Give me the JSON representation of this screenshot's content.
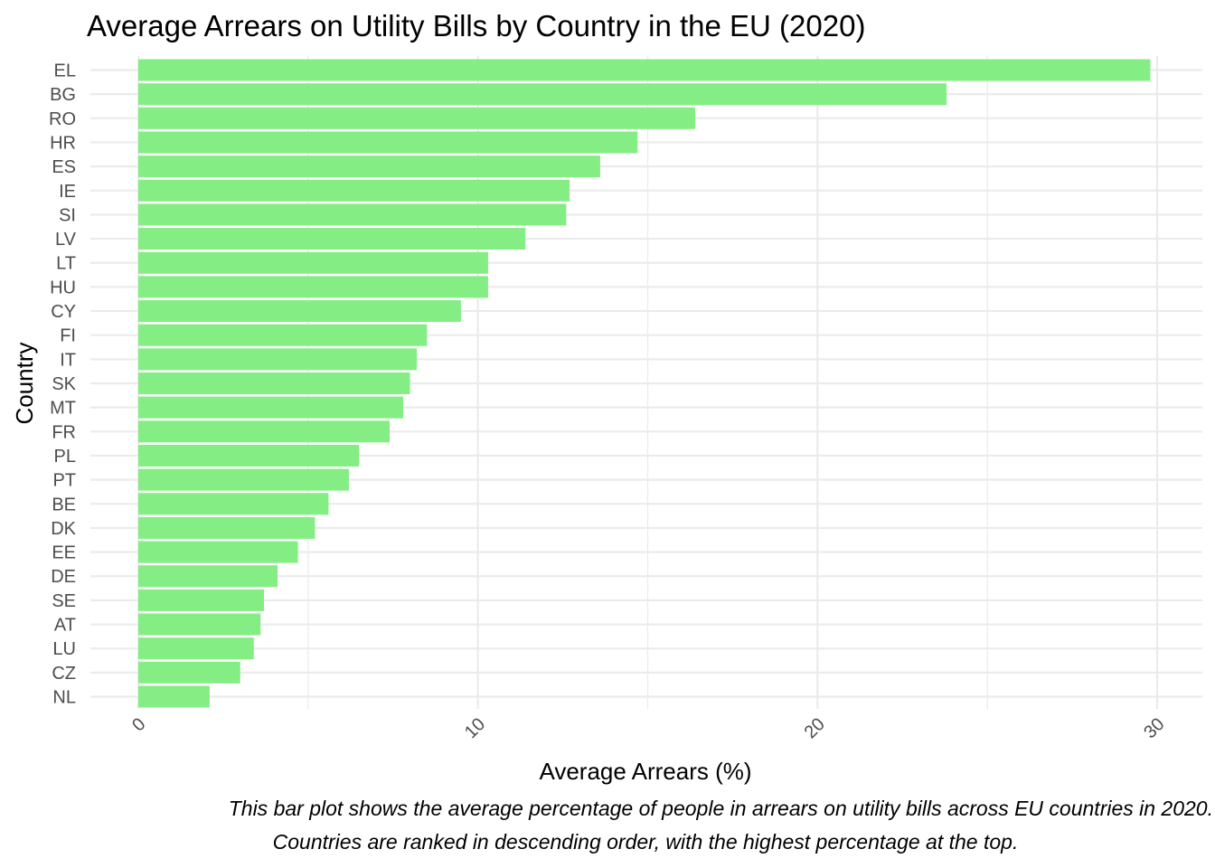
{
  "chart_data": {
    "type": "bar",
    "orientation": "horizontal",
    "title": "Average Arrears on Utility Bills by Country in the EU (2020)",
    "xlabel": "Average Arrears (%)",
    "ylabel": "Country",
    "caption": [
      "This bar plot shows the average percentage of people in arrears on utility bills across EU countries in 2020.",
      "Countries are ranked in descending order, with the highest percentage at the top."
    ],
    "categories": [
      "EL",
      "BG",
      "RO",
      "HR",
      "ES",
      "IE",
      "SI",
      "LV",
      "LT",
      "HU",
      "CY",
      "FI",
      "IT",
      "SK",
      "MT",
      "FR",
      "PL",
      "PT",
      "BE",
      "DK",
      "EE",
      "DE",
      "SE",
      "AT",
      "LU",
      "CZ",
      "NL"
    ],
    "values": [
      29.8,
      23.8,
      16.4,
      14.7,
      13.6,
      12.7,
      12.6,
      11.4,
      10.3,
      10.3,
      9.5,
      8.5,
      8.2,
      8.0,
      7.8,
      7.4,
      6.5,
      6.2,
      5.6,
      5.2,
      4.7,
      4.1,
      3.7,
      3.6,
      3.4,
      3.0,
      2.1
    ],
    "xlim": [
      0,
      30
    ],
    "xticks": [
      "0",
      "10",
      "20",
      "30"
    ],
    "grid": true,
    "bar_color": "#84ed84",
    "grid_color": "#ebebeb"
  }
}
